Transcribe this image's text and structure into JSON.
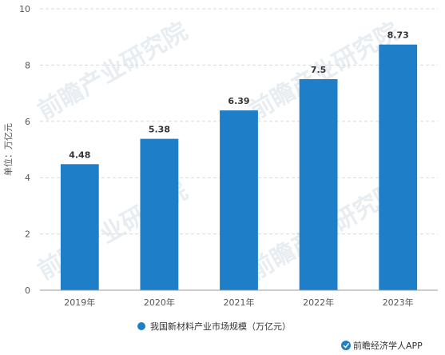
{
  "chart_data": {
    "type": "bar",
    "categories": [
      "2019年",
      "2020年",
      "2021年",
      "2022年",
      "2023年"
    ],
    "series": [
      {
        "name": "我国新材料产业市场规模（万亿元）",
        "values": [
          4.48,
          5.38,
          6.39,
          7.5,
          8.73
        ],
        "color": "#1f7ec8"
      }
    ],
    "data_labels": [
      "4.48",
      "5.38",
      "6.39",
      "7.5",
      "8.73"
    ],
    "ylabel": "单位：万亿元",
    "ylim": [
      0,
      10
    ],
    "yticks": [
      0,
      2,
      4,
      6,
      8,
      10
    ],
    "grid": true,
    "legend_position": "bottom"
  },
  "watermark": "前瞻产业研究院",
  "source": "前瞻经济学人APP",
  "colors": {
    "bar": "#1f7ec8",
    "grid": "#d9d9d9",
    "logo": "#1f7ec8"
  }
}
